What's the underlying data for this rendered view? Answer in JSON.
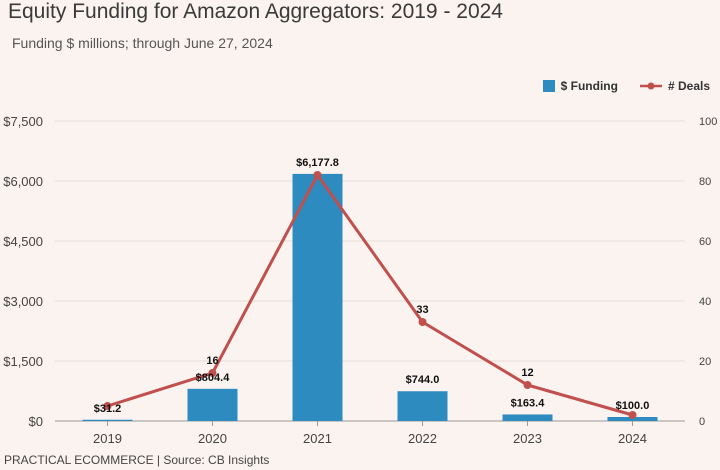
{
  "title": "Equity Funding for Amazon Aggregators: 2019 - 2024",
  "subtitle": "Funding $ millions; through June 27, 2024",
  "footer": "PRACTICAL ECOMMERCE | Source: CB Insights",
  "legend": {
    "funding": "$ Funding",
    "deals": "# Deals"
  },
  "colors": {
    "bar": "#2e8bc0",
    "line": "#c0504d",
    "background": "#fbf3f0"
  },
  "chart_data": {
    "type": "bar",
    "categories": [
      "2019",
      "2020",
      "2021",
      "2022",
      "2023",
      "2024"
    ],
    "series": [
      {
        "name": "$ Funding",
        "type": "bar",
        "axis": "left",
        "values": [
          31.2,
          804.4,
          6177.8,
          744.0,
          163.4,
          100.0
        ],
        "labels": [
          "$31.2",
          "$804.4",
          "$6,177.8",
          "$744.0",
          "$163.4",
          "$100.0"
        ]
      },
      {
        "name": "# Deals",
        "type": "line",
        "axis": "right",
        "values": [
          5,
          16,
          82,
          33,
          12,
          2
        ],
        "labels": [
          "",
          "16",
          "",
          "33",
          "12",
          ""
        ]
      }
    ],
    "y_left": {
      "ylim": [
        0,
        7500
      ],
      "ticks": [
        "$0",
        "$1,500",
        "$3,000",
        "$4,500",
        "$6,000",
        "$7,500"
      ],
      "tick_values": [
        0,
        1500,
        3000,
        4500,
        6000,
        7500
      ]
    },
    "y_right": {
      "ylim": [
        0,
        100
      ],
      "ticks": [
        "0",
        "20",
        "40",
        "60",
        "80",
        "100"
      ],
      "tick_values": [
        0,
        20,
        40,
        60,
        80,
        100
      ]
    },
    "grid": true,
    "legend_position": "top-right"
  }
}
